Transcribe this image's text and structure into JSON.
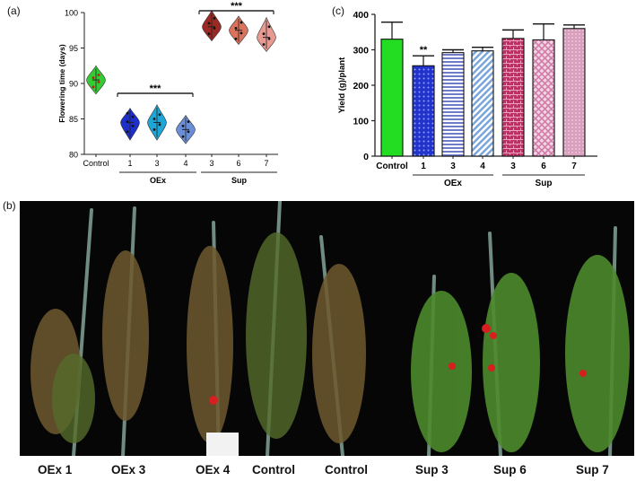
{
  "panel_labels": {
    "a": "(a)",
    "b": "(b)",
    "c": "(c)"
  },
  "chart_data": [
    {
      "type": "violin",
      "panel": "(a)",
      "ylabel": "Flowering time (days)",
      "ylim": [
        80,
        100
      ],
      "yticks": [
        "80",
        "85",
        "90",
        "95",
        "100"
      ],
      "categories": [
        "Control",
        "1",
        "3",
        "4",
        "3",
        "6",
        "7"
      ],
      "groups": [
        {
          "label": "OEx",
          "members": [
            1,
            2,
            3
          ]
        },
        {
          "label": "Sup",
          "members": [
            4,
            5,
            6
          ]
        }
      ],
      "significance": [
        {
          "text": "***",
          "span": [
            1,
            3
          ]
        },
        {
          "text": "***",
          "span": [
            4,
            6
          ]
        }
      ],
      "series": [
        {
          "category": "Control",
          "center": 90.5,
          "min": 88.5,
          "max": 92.5,
          "color": "#33cc33",
          "points": [
            89.5,
            90.2,
            90.8,
            91.2
          ]
        },
        {
          "category": "1",
          "center": 84.5,
          "min": 82,
          "max": 86.5,
          "color": "#1f2fc9",
          "points": [
            83.2,
            84,
            84.6,
            85.3,
            85.8
          ]
        },
        {
          "category": "3",
          "center": 84.5,
          "min": 82,
          "max": 87,
          "color": "#1ea7d6",
          "points": [
            83.5,
            84.2,
            85,
            85.6
          ]
        },
        {
          "category": "4",
          "center": 83.5,
          "min": 81.5,
          "max": 85.5,
          "color": "#6a8fd8",
          "points": [
            82.5,
            83.2,
            84,
            84.6
          ]
        },
        {
          "category": "3",
          "center": 98,
          "min": 96,
          "max": 100.3,
          "color": "#9c2a24",
          "points": [
            97,
            97.8,
            98.5,
            99.2
          ]
        },
        {
          "category": "6",
          "center": 97.5,
          "min": 95.5,
          "max": 99.5,
          "color": "#d9735c",
          "points": [
            96.3,
            97.1,
            97.8,
            98.6
          ]
        },
        {
          "category": "7",
          "center": 96.5,
          "min": 94.5,
          "max": 99.3,
          "color": "#e89a92",
          "points": [
            95.5,
            96.3,
            97,
            98
          ]
        }
      ]
    },
    {
      "type": "bar",
      "panel": "(c)",
      "ylabel": "Yield (g)/plant",
      "ylim": [
        0,
        400
      ],
      "yticks": [
        "0",
        "100",
        "200",
        "300",
        "400"
      ],
      "categories": [
        "Control",
        "1",
        "3",
        "4",
        "3",
        "6",
        "7"
      ],
      "groups": [
        {
          "label": "OEx",
          "members": [
            1,
            2,
            3
          ]
        },
        {
          "label": "Sup",
          "members": [
            4,
            5,
            6
          ]
        }
      ],
      "values": [
        330,
        255,
        292,
        297,
        332,
        328,
        360
      ],
      "errors": [
        48,
        28,
        8,
        10,
        24,
        45,
        10
      ],
      "annotations": [
        {
          "bar": 1,
          "text": "**"
        }
      ],
      "colors": [
        "#22dd22",
        "#2233cc",
        "#6f7bc9",
        "#7aa6dc",
        "#c02e63",
        "#d07ba8",
        "#d9a0be"
      ]
    }
  ],
  "photo_labels": [
    "OEx 1",
    "OEx 3",
    "OEx 4",
    "Control",
    "Control",
    "Sup 3",
    "Sup 6",
    "Sup 7"
  ]
}
